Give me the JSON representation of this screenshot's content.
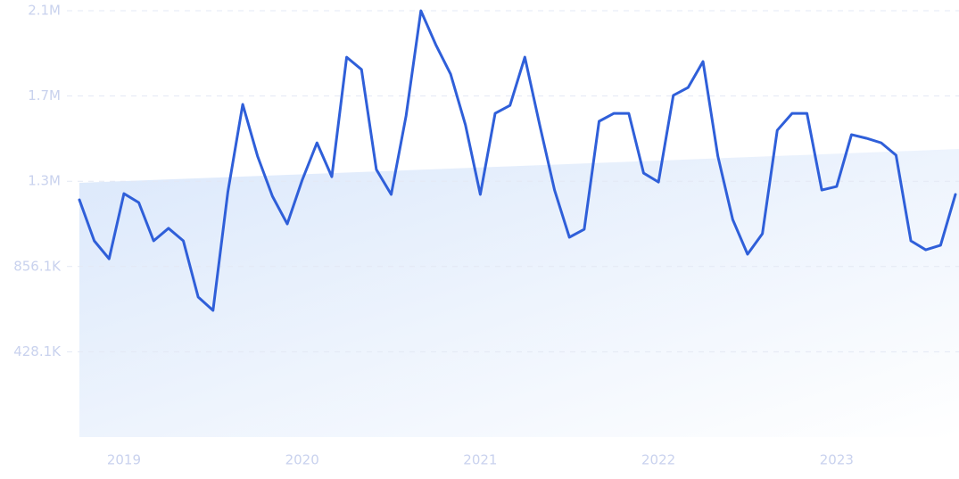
{
  "chart_data": {
    "type": "line",
    "categories": [
      null,
      null,
      null,
      "2019",
      null,
      null,
      null,
      null,
      null,
      null,
      null,
      null,
      null,
      null,
      null,
      "2020",
      null,
      null,
      null,
      null,
      null,
      null,
      null,
      null,
      null,
      null,
      null,
      "2021",
      null,
      null,
      null,
      null,
      null,
      null,
      null,
      null,
      null,
      null,
      null,
      "2022",
      null,
      null,
      null,
      null,
      null,
      null,
      null,
      null,
      null,
      null,
      null,
      "2023",
      null,
      null,
      null,
      null,
      null,
      null,
      null,
      null
    ],
    "series": [
      {
        "color": "#2f5fd9",
        "values": [
          1191000,
          985000,
          895000,
          1222000,
          1177000,
          985000,
          1048000,
          985000,
          703000,
          636000,
          1231000,
          1670000,
          1410000,
          1209000,
          1070000,
          1289000,
          1477000,
          1307000,
          1907000,
          1845000,
          1343000,
          1218000,
          1612000,
          2140000,
          1970000,
          1822000,
          1567000,
          1218000,
          1625000,
          1665000,
          1907000,
          1567000,
          1240000,
          1003000,
          1043000,
          1585000,
          1625000,
          1625000,
          1325000,
          1280000,
          1715000,
          1755000,
          1885000,
          1410000,
          1092000,
          918000,
          1021000,
          1540000,
          1625000,
          1625000,
          1240000,
          1258000,
          1518000,
          1500000,
          1477000,
          1415000,
          985000,
          940000,
          963000,
          1218000
        ]
      }
    ],
    "trend": {
      "color": "#dbe8fb",
      "values": [
        1276000,
        1446000
      ]
    },
    "ylim": [
      0,
      2140250
    ],
    "yticks": [
      {
        "value": 428050,
        "label": "428.1K"
      },
      {
        "value": 856100,
        "label": "856.1K"
      },
      {
        "value": 1284150,
        "label": "1.3M"
      },
      {
        "value": 1712200,
        "label": "1.7M"
      },
      {
        "value": 2140250,
        "label": "2.1M"
      }
    ],
    "grid": true
  }
}
